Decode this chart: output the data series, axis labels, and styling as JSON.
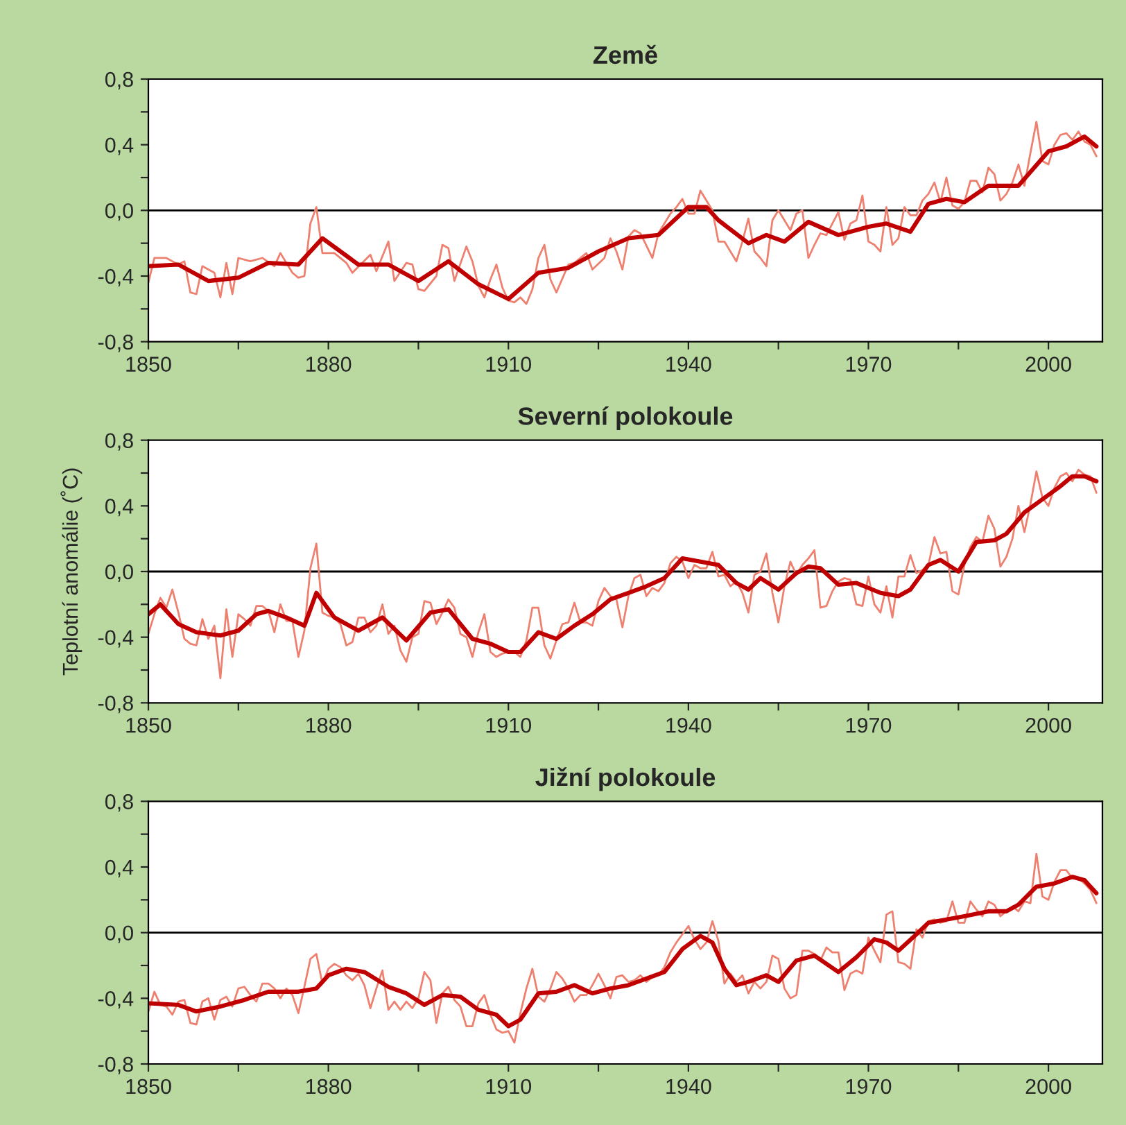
{
  "chart_data": [
    {
      "type": "line",
      "title": "Země",
      "xlim": [
        1850,
        2009
      ],
      "ylim": [
        -0.8,
        0.8
      ],
      "grid": false,
      "xticks": [
        1850,
        {
          "value": 1865,
          "label": null
        },
        1880,
        {
          "value": 1895,
          "label": null
        },
        1910,
        {
          "value": 1925,
          "label": null
        },
        1940,
        {
          "value": 1955,
          "label": null
        },
        1970,
        {
          "value": 1985,
          "label": null
        },
        2000
      ],
      "yticks": [
        {
          "value": -0.8,
          "label": "-0,8"
        },
        {
          "value": -0.6,
          "label": null
        },
        {
          "value": -0.4,
          "label": "-0,4"
        },
        {
          "value": -0.2,
          "label": null
        },
        {
          "value": 0,
          "label": "0,0"
        },
        {
          "value": 0.2,
          "label": null
        },
        {
          "value": 0.4,
          "label": "0,4"
        },
        {
          "value": 0.6,
          "label": null
        },
        {
          "value": 0.8,
          "label": "0,8"
        }
      ],
      "ref_lines": [
        {
          "axis": "y",
          "value": 0,
          "color": "#000000"
        }
      ],
      "series": [
        {
          "color": "#ee8070",
          "x": [
            1850,
            1851,
            1853,
            1855,
            1856,
            1857,
            1858,
            1859,
            1861,
            1862,
            1863,
            1864,
            1865,
            1867,
            1869,
            1871,
            1872,
            1874,
            1875,
            1876,
            1877,
            1878,
            1879,
            1881,
            1883,
            1884,
            1887,
            1888,
            1890,
            1891,
            1893,
            1894,
            1895,
            1896,
            1898,
            1899,
            1900,
            1901,
            1903,
            1904,
            1905,
            1906,
            1907,
            1908,
            1909,
            1910,
            1911,
            1912,
            1913,
            1914,
            1915,
            1916,
            1917,
            1918,
            1920,
            1921,
            1923,
            1924,
            1926,
            1927,
            1928,
            1929,
            1930,
            1931,
            1932,
            1934,
            1935,
            1937,
            1938,
            1939,
            1940,
            1941,
            1942,
            1944,
            1945,
            1946,
            1948,
            1949,
            1950,
            1951,
            1952,
            1953,
            1954,
            1955,
            1957,
            1958,
            1959,
            1960,
            1961,
            1962,
            1963,
            1965,
            1966,
            1967,
            1968,
            1969,
            1970,
            1971,
            1972,
            1973,
            1974,
            1975,
            1976,
            1977,
            1978,
            1979,
            1980,
            1981,
            1982,
            1983,
            1984,
            1985,
            1986,
            1987,
            1988,
            1989,
            1990,
            1991,
            1992,
            1993,
            1994,
            1995,
            1996,
            1997,
            1998,
            1999,
            2000,
            2001,
            2002,
            2003,
            2004,
            2005,
            2006,
            2007,
            2008
          ],
          "values": [
            -0.44,
            -0.29,
            -0.29,
            -0.33,
            -0.31,
            -0.5,
            -0.51,
            -0.34,
            -0.38,
            -0.53,
            -0.32,
            -0.51,
            -0.29,
            -0.31,
            -0.29,
            -0.34,
            -0.26,
            -0.38,
            -0.41,
            -0.4,
            -0.08,
            0.02,
            -0.26,
            -0.26,
            -0.32,
            -0.38,
            -0.27,
            -0.37,
            -0.19,
            -0.43,
            -0.32,
            -0.33,
            -0.48,
            -0.49,
            -0.4,
            -0.21,
            -0.23,
            -0.43,
            -0.22,
            -0.31,
            -0.46,
            -0.53,
            -0.42,
            -0.33,
            -0.47,
            -0.55,
            -0.56,
            -0.53,
            -0.57,
            -0.48,
            -0.29,
            -0.21,
            -0.42,
            -0.5,
            -0.33,
            -0.32,
            -0.26,
            -0.36,
            -0.29,
            -0.17,
            -0.25,
            -0.36,
            -0.16,
            -0.12,
            -0.14,
            -0.29,
            -0.14,
            -0.02,
            0.02,
            0.07,
            -0.02,
            -0.02,
            0.12,
            0.0,
            -0.19,
            -0.19,
            -0.31,
            -0.19,
            -0.05,
            -0.25,
            -0.29,
            -0.34,
            -0.06,
            0.0,
            -0.12,
            -0.02,
            0.0,
            -0.29,
            -0.21,
            -0.14,
            -0.15,
            -0.01,
            -0.18,
            -0.08,
            -0.06,
            0.09,
            -0.19,
            -0.21,
            -0.25,
            0.02,
            -0.21,
            -0.17,
            0.02,
            -0.03,
            -0.03,
            0.06,
            0.1,
            0.17,
            0.05,
            0.2,
            0.03,
            0.01,
            0.05,
            0.18,
            0.18,
            0.11,
            0.26,
            0.22,
            0.06,
            0.1,
            0.17,
            0.28,
            0.15,
            0.35,
            0.54,
            0.3,
            0.28,
            0.4,
            0.46,
            0.47,
            0.43,
            0.48,
            0.42,
            0.4,
            0.33
          ]
        },
        {
          "color": "#c00000",
          "x": [
            1850,
            1855,
            1860,
            1865,
            1870,
            1875,
            1879,
            1885,
            1890,
            1895,
            1900,
            1905,
            1910,
            1915,
            1920,
            1925,
            1930,
            1935,
            1940,
            1943,
            1945,
            1950,
            1953,
            1956,
            1960,
            1965,
            1970,
            1973,
            1977,
            1980,
            1983,
            1986,
            1990,
            1995,
            2000,
            2003,
            2006,
            2008
          ],
          "values": [
            -0.34,
            -0.33,
            -0.43,
            -0.41,
            -0.32,
            -0.33,
            -0.17,
            -0.33,
            -0.33,
            -0.43,
            -0.31,
            -0.45,
            -0.54,
            -0.38,
            -0.35,
            -0.25,
            -0.17,
            -0.15,
            0.02,
            0.02,
            -0.06,
            -0.2,
            -0.15,
            -0.19,
            -0.07,
            -0.15,
            -0.1,
            -0.08,
            -0.13,
            0.04,
            0.07,
            0.05,
            0.15,
            0.15,
            0.36,
            0.39,
            0.45,
            0.39
          ]
        }
      ]
    },
    {
      "type": "line",
      "title": "Severní polokoule",
      "ylabel": "Teplotní anomálie (˚C)",
      "xlim": [
        1850,
        2009
      ],
      "ylim": [
        -0.8,
        0.8
      ],
      "grid": false,
      "xticks": [
        1850,
        {
          "value": 1865,
          "label": null
        },
        1880,
        {
          "value": 1895,
          "label": null
        },
        1910,
        {
          "value": 1925,
          "label": null
        },
        1940,
        {
          "value": 1955,
          "label": null
        },
        1970,
        {
          "value": 1985,
          "label": null
        },
        2000
      ],
      "yticks": [
        {
          "value": -0.8,
          "label": "-0,8"
        },
        {
          "value": -0.6,
          "label": null
        },
        {
          "value": -0.4,
          "label": "-0,4"
        },
        {
          "value": -0.2,
          "label": null
        },
        {
          "value": 0,
          "label": "0,0"
        },
        {
          "value": 0.2,
          "label": null
        },
        {
          "value": 0.4,
          "label": "0,4"
        },
        {
          "value": 0.6,
          "label": null
        },
        {
          "value": 0.8,
          "label": "0,8"
        }
      ],
      "ref_lines": [
        {
          "axis": "y",
          "value": 0,
          "color": "#000000"
        }
      ],
      "series": [
        {
          "color": "#ee8070",
          "x": [
            1850,
            1851,
            1852,
            1853,
            1854,
            1855,
            1856,
            1857,
            1858,
            1859,
            1860,
            1861,
            1862,
            1863,
            1864,
            1865,
            1866,
            1867,
            1868,
            1869,
            1870,
            1871,
            1872,
            1873,
            1874,
            1875,
            1876,
            1877,
            1878,
            1879,
            1880,
            1881,
            1882,
            1883,
            1884,
            1885,
            1886,
            1887,
            1888,
            1889,
            1890,
            1891,
            1892,
            1893,
            1894,
            1895,
            1896,
            1897,
            1898,
            1899,
            1900,
            1901,
            1902,
            1903,
            1904,
            1905,
            1906,
            1907,
            1908,
            1909,
            1910,
            1911,
            1912,
            1913,
            1914,
            1915,
            1916,
            1917,
            1918,
            1919,
            1920,
            1921,
            1922,
            1923,
            1924,
            1925,
            1926,
            1927,
            1928,
            1929,
            1930,
            1931,
            1932,
            1933,
            1934,
            1935,
            1936,
            1937,
            1938,
            1939,
            1940,
            1941,
            1942,
            1943,
            1944,
            1945,
            1946,
            1947,
            1948,
            1949,
            1950,
            1951,
            1952,
            1953,
            1954,
            1955,
            1956,
            1957,
            1958,
            1959,
            1960,
            1961,
            1962,
            1963,
            1964,
            1965,
            1966,
            1967,
            1968,
            1969,
            1970,
            1971,
            1972,
            1973,
            1974,
            1975,
            1976,
            1977,
            1978,
            1979,
            1980,
            1981,
            1982,
            1983,
            1984,
            1985,
            1986,
            1987,
            1988,
            1989,
            1990,
            1991,
            1992,
            1993,
            1994,
            1995,
            1996,
            1997,
            1998,
            1999,
            2000,
            2001,
            2002,
            2003,
            2004,
            2005,
            2006,
            2007,
            2008
          ],
          "values": [
            -0.38,
            -0.26,
            -0.16,
            -0.22,
            -0.11,
            -0.25,
            -0.41,
            -0.44,
            -0.45,
            -0.29,
            -0.41,
            -0.33,
            -0.65,
            -0.23,
            -0.52,
            -0.26,
            -0.29,
            -0.33,
            -0.21,
            -0.21,
            -0.24,
            -0.37,
            -0.2,
            -0.3,
            -0.3,
            -0.52,
            -0.36,
            0.02,
            0.17,
            -0.25,
            -0.27,
            -0.28,
            -0.32,
            -0.45,
            -0.43,
            -0.28,
            -0.28,
            -0.37,
            -0.33,
            -0.2,
            -0.38,
            -0.33,
            -0.48,
            -0.55,
            -0.4,
            -0.38,
            -0.18,
            -0.19,
            -0.32,
            -0.25,
            -0.17,
            -0.22,
            -0.38,
            -0.4,
            -0.52,
            -0.37,
            -0.26,
            -0.49,
            -0.52,
            -0.5,
            -0.49,
            -0.49,
            -0.52,
            -0.42,
            -0.22,
            -0.22,
            -0.45,
            -0.53,
            -0.42,
            -0.32,
            -0.31,
            -0.19,
            -0.31,
            -0.31,
            -0.33,
            -0.18,
            -0.1,
            -0.15,
            -0.17,
            -0.34,
            -0.15,
            -0.04,
            -0.02,
            -0.15,
            -0.1,
            -0.12,
            -0.07,
            0.05,
            0.09,
            0.06,
            -0.04,
            0.04,
            0.02,
            0.02,
            0.12,
            -0.03,
            -0.02,
            -0.09,
            -0.06,
            -0.13,
            -0.25,
            -0.02,
            0.0,
            0.11,
            -0.13,
            -0.31,
            -0.09,
            0.06,
            -0.02,
            0.04,
            0.08,
            0.13,
            -0.22,
            -0.21,
            -0.12,
            -0.06,
            -0.04,
            -0.05,
            -0.2,
            -0.21,
            -0.03,
            -0.2,
            -0.25,
            -0.09,
            -0.28,
            -0.03,
            -0.03,
            0.1,
            -0.01,
            0.01,
            0.04,
            0.21,
            0.11,
            0.12,
            -0.12,
            -0.14,
            0.04,
            0.15,
            0.21,
            0.18,
            0.34,
            0.26,
            0.03,
            0.09,
            0.2,
            0.4,
            0.24,
            0.41,
            0.61,
            0.45,
            0.4,
            0.51,
            0.58,
            0.6,
            0.55,
            0.62,
            0.59,
            0.58,
            0.48
          ]
        },
        {
          "color": "#c00000",
          "x": [
            1850,
            1852,
            1855,
            1858,
            1862,
            1865,
            1868,
            1870,
            1873,
            1876,
            1878,
            1881,
            1885,
            1889,
            1893,
            1897,
            1900,
            1904,
            1907,
            1910,
            1912,
            1915,
            1918,
            1921,
            1924,
            1927,
            1930,
            1933,
            1936,
            1939,
            1942,
            1945,
            1948,
            1950,
            1952,
            1955,
            1958,
            1960,
            1962,
            1965,
            1968,
            1972,
            1975,
            1977,
            1980,
            1982,
            1985,
            1988,
            1991,
            1993,
            1996,
            1999,
            2002,
            2004,
            2006,
            2008
          ],
          "values": [
            -0.26,
            -0.2,
            -0.32,
            -0.37,
            -0.39,
            -0.36,
            -0.26,
            -0.24,
            -0.28,
            -0.33,
            -0.13,
            -0.28,
            -0.36,
            -0.28,
            -0.42,
            -0.25,
            -0.23,
            -0.41,
            -0.44,
            -0.49,
            -0.49,
            -0.37,
            -0.41,
            -0.33,
            -0.26,
            -0.17,
            -0.13,
            -0.09,
            -0.04,
            0.08,
            0.06,
            0.04,
            -0.07,
            -0.11,
            -0.04,
            -0.11,
            -0.01,
            0.03,
            0.02,
            -0.08,
            -0.07,
            -0.13,
            -0.15,
            -0.11,
            0.04,
            0.07,
            0.0,
            0.18,
            0.19,
            0.23,
            0.36,
            0.44,
            0.52,
            0.58,
            0.58,
            0.55
          ]
        }
      ]
    },
    {
      "type": "line",
      "title": "Jižní polokoule",
      "xlim": [
        1850,
        2009
      ],
      "ylim": [
        -0.8,
        0.8
      ],
      "grid": false,
      "xticks": [
        1850,
        {
          "value": 1865,
          "label": null
        },
        1880,
        {
          "value": 1895,
          "label": null
        },
        1910,
        {
          "value": 1925,
          "label": null
        },
        1940,
        {
          "value": 1955,
          "label": null
        },
        1970,
        {
          "value": 1985,
          "label": null
        },
        2000
      ],
      "yticks": [
        {
          "value": -0.8,
          "label": "-0,8"
        },
        {
          "value": -0.6,
          "label": null
        },
        {
          "value": -0.4,
          "label": "-0,4"
        },
        {
          "value": -0.2,
          "label": null
        },
        {
          "value": 0,
          "label": "0,0"
        },
        {
          "value": 0.2,
          "label": null
        },
        {
          "value": 0.4,
          "label": "0,4"
        },
        {
          "value": 0.6,
          "label": null
        },
        {
          "value": 0.8,
          "label": "0,8"
        }
      ],
      "ref_lines": [
        {
          "axis": "y",
          "value": 0,
          "color": "#000000"
        }
      ],
      "series": [
        {
          "color": "#ee8070",
          "x": [
            1850,
            1851,
            1852,
            1853,
            1854,
            1855,
            1856,
            1857,
            1858,
            1859,
            1860,
            1861,
            1862,
            1863,
            1864,
            1865,
            1866,
            1867,
            1868,
            1869,
            1870,
            1871,
            1872,
            1873,
            1874,
            1875,
            1876,
            1877,
            1878,
            1879,
            1880,
            1881,
            1882,
            1883,
            1884,
            1885,
            1886,
            1887,
            1888,
            1889,
            1890,
            1891,
            1892,
            1893,
            1894,
            1895,
            1896,
            1897,
            1898,
            1899,
            1900,
            1901,
            1902,
            1903,
            1904,
            1905,
            1906,
            1907,
            1908,
            1909,
            1910,
            1911,
            1912,
            1913,
            1914,
            1915,
            1916,
            1917,
            1918,
            1919,
            1920,
            1921,
            1922,
            1923,
            1924,
            1925,
            1926,
            1927,
            1928,
            1929,
            1930,
            1931,
            1932,
            1933,
            1934,
            1935,
            1936,
            1937,
            1938,
            1939,
            1940,
            1941,
            1942,
            1943,
            1944,
            1945,
            1946,
            1947,
            1948,
            1949,
            1950,
            1951,
            1952,
            1953,
            1954,
            1955,
            1956,
            1957,
            1958,
            1959,
            1960,
            1961,
            1962,
            1963,
            1964,
            1965,
            1966,
            1967,
            1968,
            1969,
            1970,
            1971,
            1972,
            1973,
            1974,
            1975,
            1976,
            1977,
            1978,
            1979,
            1980,
            1981,
            1982,
            1983,
            1984,
            1985,
            1986,
            1987,
            1988,
            1989,
            1990,
            1991,
            1992,
            1993,
            1994,
            1995,
            1996,
            1997,
            1998,
            1999,
            2000,
            2001,
            2002,
            2003,
            2004,
            2005,
            2006,
            2007,
            2008
          ],
          "values": [
            -0.48,
            -0.36,
            -0.44,
            -0.45,
            -0.5,
            -0.42,
            -0.41,
            -0.55,
            -0.56,
            -0.42,
            -0.4,
            -0.53,
            -0.41,
            -0.39,
            -0.45,
            -0.34,
            -0.33,
            -0.38,
            -0.42,
            -0.31,
            -0.31,
            -0.34,
            -0.4,
            -0.34,
            -0.38,
            -0.49,
            -0.33,
            -0.16,
            -0.13,
            -0.31,
            -0.22,
            -0.19,
            -0.21,
            -0.26,
            -0.29,
            -0.25,
            -0.32,
            -0.46,
            -0.34,
            -0.23,
            -0.47,
            -0.42,
            -0.47,
            -0.42,
            -0.46,
            -0.4,
            -0.24,
            -0.29,
            -0.55,
            -0.37,
            -0.33,
            -0.41,
            -0.45,
            -0.57,
            -0.57,
            -0.43,
            -0.38,
            -0.5,
            -0.59,
            -0.61,
            -0.6,
            -0.67,
            -0.49,
            -0.34,
            -0.22,
            -0.39,
            -0.42,
            -0.34,
            -0.24,
            -0.28,
            -0.34,
            -0.42,
            -0.38,
            -0.38,
            -0.32,
            -0.25,
            -0.32,
            -0.4,
            -0.27,
            -0.26,
            -0.3,
            -0.29,
            -0.26,
            -0.3,
            -0.27,
            -0.26,
            -0.21,
            -0.12,
            -0.06,
            -0.01,
            0.04,
            -0.04,
            -0.1,
            -0.06,
            0.07,
            -0.05,
            -0.31,
            -0.25,
            -0.3,
            -0.26,
            -0.37,
            -0.3,
            -0.34,
            -0.3,
            -0.14,
            -0.16,
            -0.34,
            -0.4,
            -0.38,
            -0.11,
            -0.11,
            -0.13,
            -0.17,
            -0.09,
            -0.12,
            -0.12,
            -0.35,
            -0.25,
            -0.23,
            -0.25,
            -0.03,
            -0.11,
            -0.18,
            0.11,
            0.13,
            -0.18,
            -0.19,
            -0.22,
            0.02,
            -0.03,
            0.07,
            0.08,
            0.06,
            0.07,
            0.19,
            0.06,
            0.06,
            0.19,
            0.14,
            0.1,
            0.19,
            0.17,
            0.1,
            0.13,
            0.16,
            0.13,
            0.19,
            0.18,
            0.48,
            0.22,
            0.2,
            0.31,
            0.38,
            0.38,
            0.33,
            0.33,
            0.3,
            0.26,
            0.18
          ]
        },
        {
          "color": "#c00000",
          "x": [
            1850,
            1855,
            1858,
            1862,
            1866,
            1870,
            1875,
            1878,
            1880,
            1883,
            1886,
            1890,
            1893,
            1896,
            1899,
            1902,
            1905,
            1908,
            1910,
            1912,
            1915,
            1918,
            1921,
            1924,
            1927,
            1930,
            1933,
            1936,
            1939,
            1942,
            1944,
            1946,
            1948,
            1950,
            1953,
            1955,
            1958,
            1961,
            1965,
            1968,
            1971,
            1973,
            1975,
            1978,
            1980,
            1983,
            1986,
            1990,
            1993,
            1995,
            1998,
            2001,
            2004,
            2006,
            2008
          ],
          "values": [
            -0.43,
            -0.44,
            -0.48,
            -0.45,
            -0.41,
            -0.36,
            -0.36,
            -0.34,
            -0.26,
            -0.22,
            -0.24,
            -0.33,
            -0.37,
            -0.44,
            -0.38,
            -0.39,
            -0.47,
            -0.5,
            -0.57,
            -0.53,
            -0.37,
            -0.36,
            -0.32,
            -0.37,
            -0.34,
            -0.32,
            -0.28,
            -0.24,
            -0.1,
            -0.02,
            -0.06,
            -0.22,
            -0.32,
            -0.3,
            -0.26,
            -0.3,
            -0.17,
            -0.14,
            -0.24,
            -0.15,
            -0.04,
            -0.06,
            -0.11,
            -0.01,
            0.06,
            0.08,
            0.1,
            0.13,
            0.13,
            0.17,
            0.28,
            0.3,
            0.34,
            0.32,
            0.24
          ]
        }
      ]
    }
  ]
}
